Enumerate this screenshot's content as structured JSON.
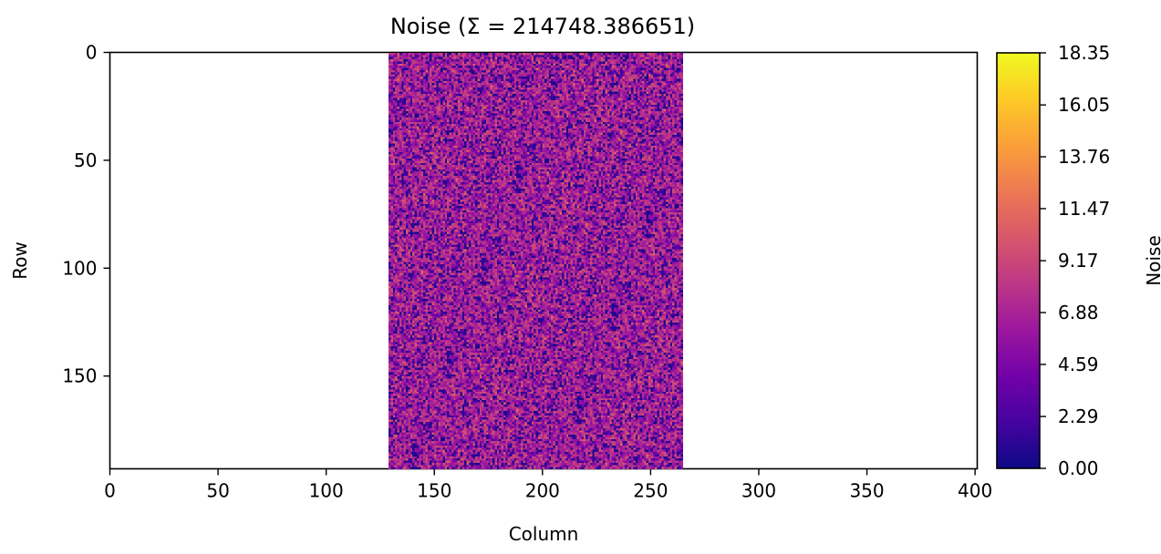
{
  "chart_data": {
    "type": "heatmap",
    "title": "Noise (Σ = 214748.386651)",
    "xlabel": "Column",
    "ylabel": "Row",
    "xlim": [
      0,
      401
    ],
    "ylim": [
      193,
      0
    ],
    "x_ticks": [
      0,
      50,
      100,
      150,
      200,
      250,
      300,
      350,
      400
    ],
    "x_tick_labels": [
      "0",
      "50",
      "100",
      "150",
      "200",
      "250",
      "300",
      "350",
      "400"
    ],
    "y_ticks": [
      0,
      50,
      100,
      150
    ],
    "y_tick_labels": [
      "0",
      "50",
      "100",
      "150"
    ],
    "data_region": {
      "col_start": 129,
      "col_end": 265,
      "row_start": 0,
      "row_end": 193
    },
    "noise_sum": 214748.386651,
    "colormap": "plasma",
    "colorbar": {
      "label": "Noise",
      "min": 0.0,
      "max": 18.35,
      "ticks": [
        0.0,
        2.29,
        4.59,
        6.88,
        9.17,
        11.47,
        13.76,
        16.05,
        18.35
      ],
      "tick_labels": [
        "0.00",
        "2.29",
        "4.59",
        "6.88",
        "9.17",
        "11.47",
        "13.76",
        "16.05",
        "18.35"
      ],
      "colors": [
        "#0d0887",
        "#46039f",
        "#7201a8",
        "#9c179e",
        "#bd3786",
        "#d8576b",
        "#ed7953",
        "#fb9f3a",
        "#fdca26",
        "#f0f921"
      ]
    },
    "grid": false
  }
}
